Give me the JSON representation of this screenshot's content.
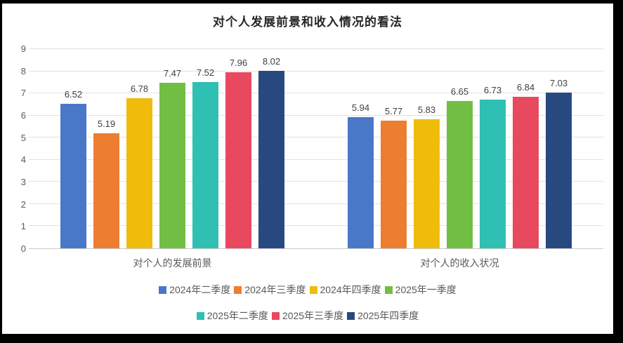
{
  "chart_data": {
    "type": "bar",
    "title": "对个人发展前景和收入情况的看法",
    "categories": [
      "对个人的发展前景",
      "对个人的收入状况"
    ],
    "series": [
      {
        "name": "2024年二季度",
        "color": "#4a78c9",
        "values": [
          6.52,
          5.94
        ]
      },
      {
        "name": "2024年三季度",
        "color": "#ec7d31",
        "values": [
          5.19,
          5.77
        ]
      },
      {
        "name": "2024年四季度",
        "color": "#f0bc0b",
        "values": [
          6.78,
          5.83
        ]
      },
      {
        "name": "2025年一季度",
        "color": "#71be44",
        "values": [
          7.47,
          6.65
        ]
      },
      {
        "name": "2025年二季度",
        "color": "#2fc0b3",
        "values": [
          7.52,
          6.73
        ]
      },
      {
        "name": "2025年三季度",
        "color": "#e8495f",
        "values": [
          7.96,
          6.84
        ]
      },
      {
        "name": "2025年四季度",
        "color": "#27497f",
        "values": [
          8.02,
          7.03
        ]
      }
    ],
    "ylim": [
      0,
      9
    ],
    "ytick_step": 1,
    "grid": true,
    "data_labels": true,
    "legend_position": "bottom",
    "legend_rows": [
      4,
      3
    ]
  }
}
